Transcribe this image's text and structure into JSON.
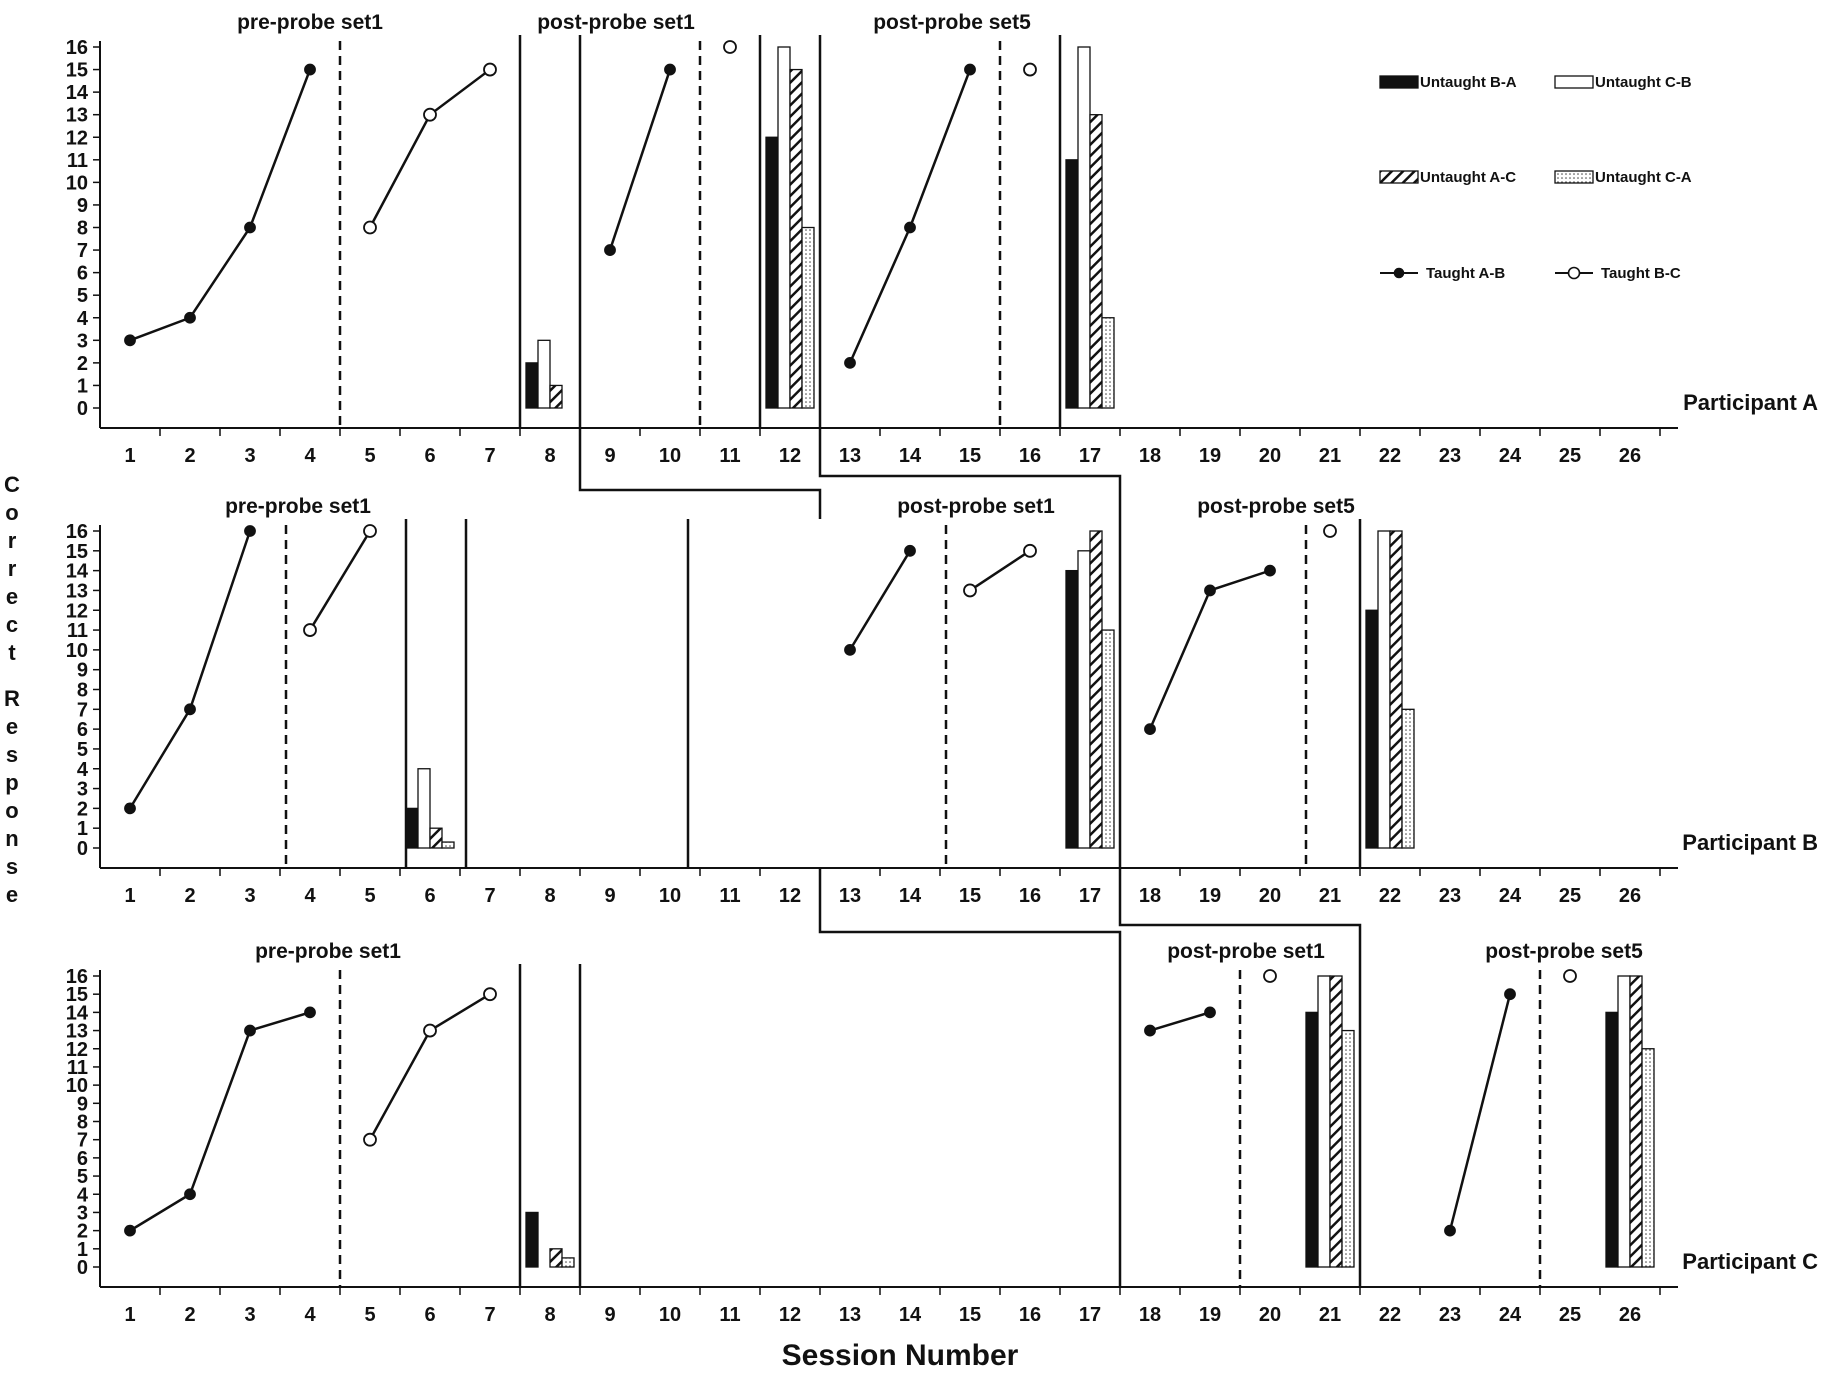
{
  "chart_data": {
    "type": "line+bar",
    "xlabel": "Session Number",
    "ylabel": "Correct Response",
    "ylim": [
      0,
      16
    ],
    "yticks": [
      0,
      1,
      2,
      3,
      4,
      5,
      6,
      7,
      8,
      9,
      10,
      11,
      12,
      13,
      14,
      15,
      16
    ],
    "xticks": [
      1,
      2,
      3,
      4,
      5,
      6,
      7,
      8,
      9,
      10,
      11,
      12,
      13,
      14,
      15,
      16,
      17,
      18,
      19,
      20,
      21,
      22,
      23,
      24,
      25,
      26
    ],
    "legend": {
      "placement": "top-right",
      "entries": [
        {
          "name": "Untaught B-A",
          "kind": "bar",
          "fill": "black"
        },
        {
          "name": "Untaught C-B",
          "kind": "bar",
          "fill": "white"
        },
        {
          "name": "Untaught A-C",
          "kind": "bar",
          "fill": "hatch"
        },
        {
          "name": "Untaught C-A",
          "kind": "bar",
          "fill": "dots"
        },
        {
          "name": "Taught A-B",
          "kind": "line",
          "marker": "filled"
        },
        {
          "name": "Taught B-C",
          "kind": "line",
          "marker": "open"
        }
      ]
    },
    "panels": [
      {
        "participant": "Participant A",
        "phases": [
          {
            "label": "pre-probe set1",
            "center": 4
          },
          {
            "label": "post-probe set1",
            "center": 9.1
          },
          {
            "label": "post-probe set5",
            "center": 14.7
          }
        ],
        "dashed_lines": [
          4.5,
          10.5,
          15.5
        ],
        "solid_lines": [
          7.5,
          8.5,
          11.5,
          12.5,
          16.5
        ],
        "taught_ab": [
          {
            "x": [
              1,
              2,
              3,
              4
            ],
            "y": [
              3,
              4,
              8,
              15
            ]
          },
          {
            "x": [
              9,
              10
            ],
            "y": [
              7,
              15
            ]
          },
          {
            "x": [
              13,
              14,
              15
            ],
            "y": [
              2,
              8,
              15
            ]
          }
        ],
        "taught_bc": [
          {
            "x": [
              5,
              6,
              7
            ],
            "y": [
              8,
              13,
              15
            ]
          },
          {
            "x": [
              11
            ],
            "y": [
              16
            ]
          },
          {
            "x": [
              16
            ],
            "y": [
              15
            ]
          }
        ],
        "probes": [
          {
            "session": 8,
            "BA": 2,
            "CB": 3,
            "AC": 1,
            "CA": 0
          },
          {
            "session": 12,
            "BA": 12,
            "CB": 16,
            "AC": 15,
            "CA": 8
          },
          {
            "session": 17,
            "BA": 11,
            "CB": 16,
            "AC": 13,
            "CA": 4
          }
        ]
      },
      {
        "participant": "Participant B",
        "phases": [
          {
            "label": "pre-probe set1",
            "center": 3.8
          },
          {
            "label": "post-probe set1",
            "center": 15.1
          },
          {
            "label": "post-probe set5",
            "center": 20.1
          }
        ],
        "dashed_lines": [
          3.6,
          14.6,
          20.6
        ],
        "solid_lines": [
          5.6,
          6.6,
          10.3,
          17.5,
          21.5
        ],
        "taught_ab": [
          {
            "x": [
              1,
              2,
              3
            ],
            "y": [
              2,
              7,
              16
            ]
          },
          {
            "x": [
              13,
              14
            ],
            "y": [
              10,
              15
            ]
          },
          {
            "x": [
              18,
              19,
              20
            ],
            "y": [
              6,
              13,
              14
            ]
          }
        ],
        "taught_bc": [
          {
            "x": [
              4,
              5
            ],
            "y": [
              11,
              16
            ]
          },
          {
            "x": [
              15,
              16
            ],
            "y": [
              13,
              15
            ]
          },
          {
            "x": [
              21
            ],
            "y": [
              16
            ]
          }
        ],
        "probes": [
          {
            "session": 6,
            "BA": 2,
            "CB": 4,
            "AC": 1,
            "CA": 0.3
          },
          {
            "session": 17,
            "BA": 14,
            "CB": 15,
            "AC": 16,
            "CA": 11
          },
          {
            "session": 22,
            "BA": 12,
            "CB": 16,
            "AC": 16,
            "CA": 7
          }
        ]
      },
      {
        "participant": "Participant C",
        "phases": [
          {
            "label": "pre-probe set1",
            "center": 4.3
          },
          {
            "label": "post-probe set1",
            "center": 19.6
          },
          {
            "label": "post-probe set5",
            "center": 24.9
          }
        ],
        "dashed_lines": [
          4.5,
          19.5,
          24.5
        ],
        "solid_lines": [
          7.5,
          8.5,
          17.5,
          21.5
        ],
        "taught_ab": [
          {
            "x": [
              1,
              2,
              3,
              4
            ],
            "y": [
              2,
              4,
              13,
              14
            ]
          },
          {
            "x": [
              18,
              19
            ],
            "y": [
              13,
              14
            ]
          },
          {
            "x": [
              23,
              24
            ],
            "y": [
              2,
              15
            ]
          }
        ],
        "taught_bc": [
          {
            "x": [
              5,
              6,
              7
            ],
            "y": [
              7,
              13,
              15
            ]
          },
          {
            "x": [
              20
            ],
            "y": [
              16
            ]
          },
          {
            "x": [
              25
            ],
            "y": [
              16
            ]
          }
        ],
        "probes": [
          {
            "session": 8,
            "BA": 3,
            "CB": 0,
            "AC": 1,
            "CA": 0.5
          },
          {
            "session": 21,
            "BA": 14,
            "CB": 16,
            "AC": 16,
            "CA": 13
          },
          {
            "session": 26,
            "BA": 14,
            "CB": 16,
            "AC": 16,
            "CA": 12
          }
        ]
      }
    ]
  }
}
